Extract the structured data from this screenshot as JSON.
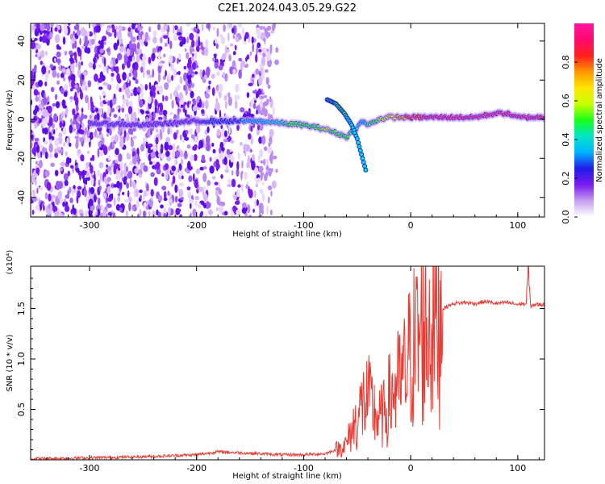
{
  "title": "C2E1.2024.043.05.29.G22",
  "chart_data": [
    {
      "type": "heatmap",
      "title": "C2E1.2024.043.05.29.G22",
      "xlabel": "Height of straight line (km)",
      "ylabel": "Frequency (Hz)",
      "xlim": [
        -355,
        125
      ],
      "ylim": [
        -50,
        49
      ],
      "x_ticks": [
        -300,
        -200,
        -100,
        0,
        100
      ],
      "y_ticks": [
        -40,
        -20,
        0,
        20,
        40
      ],
      "colorbar": {
        "label": "Normalized spectral amplitude",
        "range": [
          0.0,
          1.0
        ],
        "ticks": [
          0.0,
          0.2,
          0.4,
          0.6,
          0.8
        ],
        "colors": [
          "#ffffff",
          "#c6a0f0",
          "#7a1af0",
          "#1f1ae6",
          "#00b4ff",
          "#00e5c8",
          "#19ff19",
          "#c8ff00",
          "#ffe600",
          "#ff9600",
          "#ff1e1e",
          "#ff0a6e",
          "#ff14a0"
        ]
      },
      "ridge": {
        "x": [
          -300,
          -250,
          -200,
          -170,
          -140,
          -120,
          -100,
          -80,
          -60,
          -50,
          -45,
          -40,
          -30,
          -20,
          -10,
          0,
          20,
          40,
          60,
          80,
          90,
          100,
          125
        ],
        "frequency": [
          -2,
          -3,
          -1,
          -1,
          -1,
          -2,
          -3,
          -5,
          -9,
          -4,
          -1,
          -3,
          0,
          1,
          1,
          1,
          1,
          1,
          1,
          3,
          3,
          1,
          1
        ],
        "amplitude": [
          0.15,
          0.15,
          0.2,
          0.25,
          0.35,
          0.45,
          0.5,
          0.55,
          0.5,
          0.4,
          0.3,
          0.45,
          0.55,
          0.65,
          0.75,
          0.85,
          0.9,
          0.92,
          0.92,
          0.95,
          0.9,
          0.92,
          0.92
        ]
      },
      "branch": {
        "x": [
          -78,
          -70,
          -62,
          -55,
          -50,
          -46,
          -42
        ],
        "frequency": [
          10,
          8,
          3,
          -3,
          -10,
          -18,
          -26
        ]
      }
    },
    {
      "type": "line",
      "xlabel": "Height of straight line (km)",
      "ylabel": "SNR (10 * v/v)",
      "y_multiplier": "(x10⁴)",
      "xlim": [
        -355,
        125
      ],
      "ylim": [
        0,
        1.92
      ],
      "x_ticks": [
        -300,
        -200,
        -100,
        0,
        100
      ],
      "y_ticks": [
        0.5,
        1.0,
        1.5
      ],
      "y_tick_labels": [
        "0.5",
        "1.0",
        "1.5"
      ],
      "line_color": "#e83a32",
      "series": [
        {
          "x": [
            -355,
            -300,
            -250,
            -200,
            -180,
            -160,
            -140,
            -120,
            -100,
            -80,
            -70,
            -60,
            -55,
            -50,
            -45,
            -40,
            -35,
            -30,
            -25,
            -20,
            -15,
            -10,
            -5,
            0,
            10,
            20,
            30,
            40,
            50,
            60,
            70,
            80,
            90,
            100,
            105,
            108,
            110,
            112,
            115,
            125
          ],
          "values": [
            0.01,
            0.02,
            0.03,
            0.05,
            0.08,
            0.07,
            0.06,
            0.05,
            0.05,
            0.06,
            0.1,
            0.15,
            0.3,
            0.4,
            0.55,
            0.6,
            0.5,
            0.4,
            0.45,
            0.6,
            0.7,
            0.75,
            0.85,
            1.05,
            1.25,
            1.4,
            1.5,
            1.55,
            1.56,
            1.55,
            1.57,
            1.55,
            1.56,
            1.54,
            1.55,
            1.53,
            1.9,
            1.52,
            1.54,
            1.54
          ]
        }
      ]
    }
  ]
}
